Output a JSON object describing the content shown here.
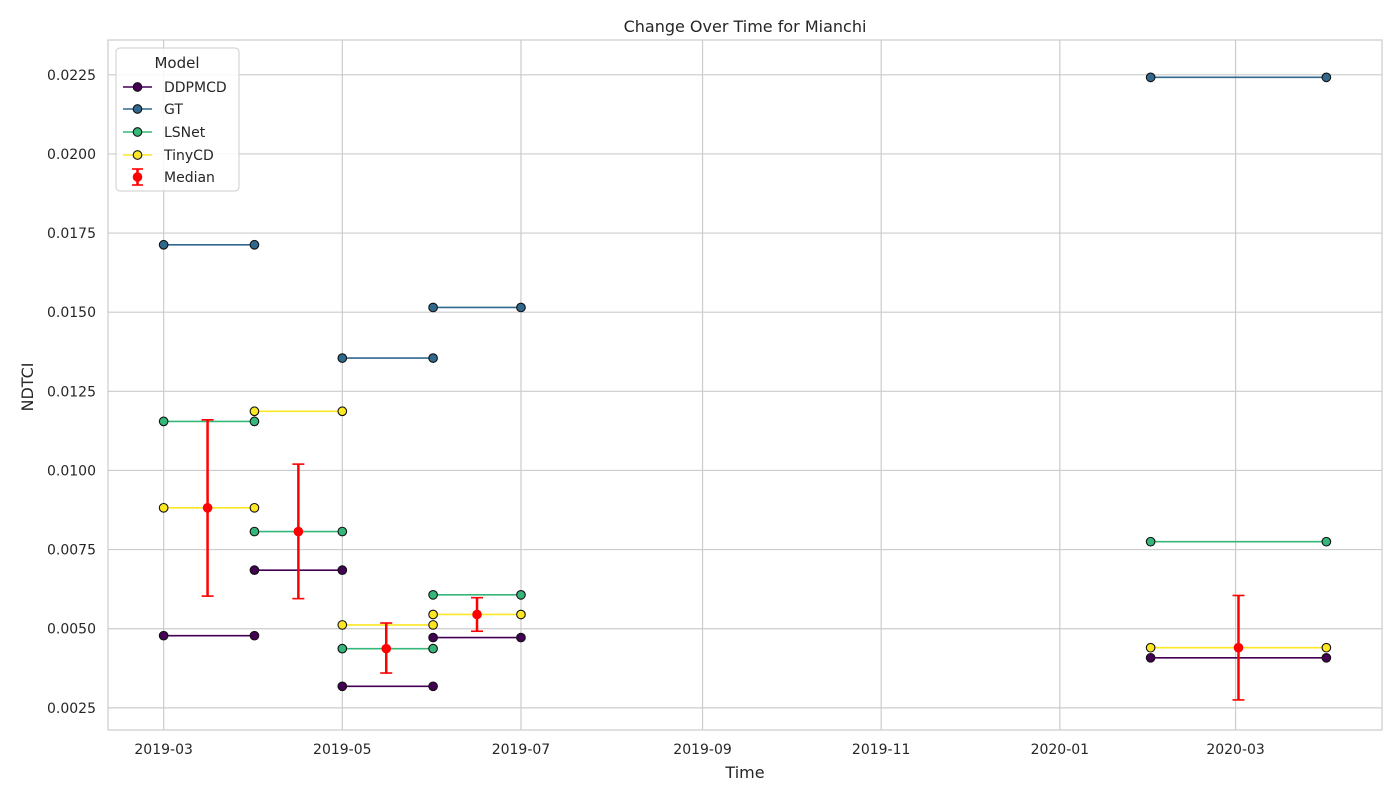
{
  "chart_data": {
    "type": "line",
    "title": "Change Over Time for Mianchi",
    "xlabel": "Time",
    "ylabel": "NDTCI",
    "x_axis_type": "date",
    "xlim": [
      "2019-02-10",
      "2020-04-20"
    ],
    "ylim": [
      0.0018,
      0.0236
    ],
    "x_ticks": [
      "2019-03",
      "2019-05",
      "2019-07",
      "2019-09",
      "2019-11",
      "2020-01",
      "2020-03"
    ],
    "y_ticks": [
      "0.0025",
      "0.0050",
      "0.0075",
      "0.0100",
      "0.0125",
      "0.0150",
      "0.0175",
      "0.0200",
      "0.0225"
    ],
    "grid": true,
    "legend": {
      "title": "Model",
      "placement": "top-left"
    },
    "series": [
      {
        "name": "DDPMCD",
        "color": "#440154",
        "segments": [
          [
            [
              "2019-03-01",
              0.00478
            ],
            [
              "2019-04-01",
              0.00478
            ]
          ],
          [
            [
              "2019-04-01",
              0.00685
            ],
            [
              "2019-05-01",
              0.00685
            ]
          ],
          [
            [
              "2019-05-01",
              0.00318
            ],
            [
              "2019-06-01",
              0.00318
            ]
          ],
          [
            [
              "2019-06-01",
              0.00472
            ],
            [
              "2019-07-01",
              0.00472
            ]
          ],
          [
            [
              "2020-02-01",
              0.00408
            ],
            [
              "2020-04-01",
              0.00408
            ]
          ]
        ]
      },
      {
        "name": "GT",
        "color": "#31688e",
        "segments": [
          [
            [
              "2019-03-01",
              0.01713
            ],
            [
              "2019-04-01",
              0.01713
            ]
          ],
          [
            [
              "2019-05-01",
              0.01355
            ],
            [
              "2019-06-01",
              0.01355
            ]
          ],
          [
            [
              "2019-06-01",
              0.01515
            ],
            [
              "2019-07-01",
              0.01515
            ]
          ],
          [
            [
              "2020-02-01",
              0.02242
            ],
            [
              "2020-04-01",
              0.02242
            ]
          ]
        ]
      },
      {
        "name": "LSNet",
        "color": "#35b779",
        "segments": [
          [
            [
              "2019-03-01",
              0.01155
            ],
            [
              "2019-04-01",
              0.01155
            ]
          ],
          [
            [
              "2019-04-01",
              0.00807
            ],
            [
              "2019-05-01",
              0.00807
            ]
          ],
          [
            [
              "2019-05-01",
              0.00437
            ],
            [
              "2019-06-01",
              0.00437
            ]
          ],
          [
            [
              "2019-06-01",
              0.00607
            ],
            [
              "2019-07-01",
              0.00607
            ]
          ],
          [
            [
              "2020-02-01",
              0.00775
            ],
            [
              "2020-04-01",
              0.00775
            ]
          ]
        ]
      },
      {
        "name": "TinyCD",
        "color": "#fde725",
        "segments": [
          [
            [
              "2019-03-01",
              0.00882
            ],
            [
              "2019-04-01",
              0.00882
            ]
          ],
          [
            [
              "2019-04-01",
              0.01187
            ],
            [
              "2019-05-01",
              0.01187
            ]
          ],
          [
            [
              "2019-05-01",
              0.00512
            ],
            [
              "2019-06-01",
              0.00512
            ]
          ],
          [
            [
              "2019-06-01",
              0.00545
            ],
            [
              "2019-07-01",
              0.00545
            ]
          ],
          [
            [
              "2020-02-01",
              0.0044
            ],
            [
              "2020-04-01",
              0.0044
            ]
          ]
        ]
      }
    ],
    "median": {
      "name": "Median",
      "color": "#ff0000",
      "points": [
        {
          "x": "2019-03-16",
          "y": 0.00882,
          "low": 0.00603,
          "high": 0.0116
        },
        {
          "x": "2019-04-16",
          "y": 0.00807,
          "low": 0.00595,
          "high": 0.0102
        },
        {
          "x": "2019-05-16",
          "y": 0.00437,
          "low": 0.0036,
          "high": 0.00518
        },
        {
          "x": "2019-06-16",
          "y": 0.00545,
          "low": 0.00492,
          "high": 0.00598
        },
        {
          "x": "2020-03-02",
          "y": 0.0044,
          "low": 0.00275,
          "high": 0.00605
        }
      ]
    }
  }
}
